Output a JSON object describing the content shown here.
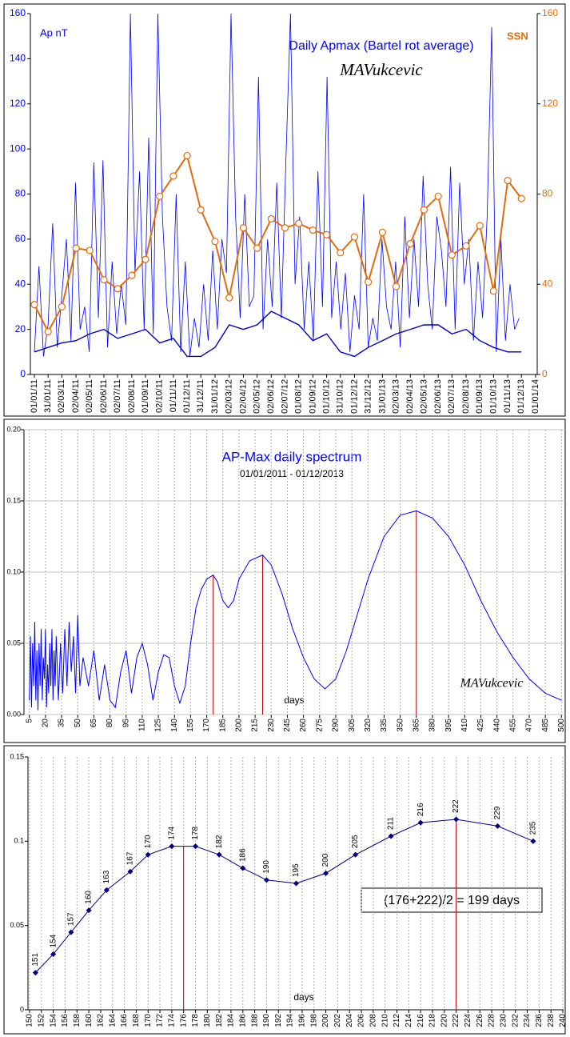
{
  "chart_data": [
    {
      "type": "line",
      "title": "Daily Apmax (Bartel rot average)",
      "annotation": "MAVukcevic",
      "xlim": [
        0,
        1096
      ],
      "xticks": [
        {
          "value": 0,
          "label": "01/01/11"
        },
        {
          "value": 30,
          "label": "31/01/11"
        },
        {
          "value": 60,
          "label": "02/03/11"
        },
        {
          "value": 91,
          "label": "02/04/11"
        },
        {
          "value": 121,
          "label": "02/05/11"
        },
        {
          "value": 152,
          "label": "02/06/11"
        },
        {
          "value": 182,
          "label": "02/07/11"
        },
        {
          "value": 213,
          "label": "02/08/11"
        },
        {
          "value": 243,
          "label": "01/09/11"
        },
        {
          "value": 274,
          "label": "02/10/11"
        },
        {
          "value": 304,
          "label": "01/11/11"
        },
        {
          "value": 334,
          "label": "01/12/11"
        },
        {
          "value": 364,
          "label": "31/12/11"
        },
        {
          "value": 395,
          "label": "31/01/12"
        },
        {
          "value": 426,
          "label": "02/03/12"
        },
        {
          "value": 457,
          "label": "02/04/12"
        },
        {
          "value": 487,
          "label": "02/05/12"
        },
        {
          "value": 518,
          "label": "02/06/12"
        },
        {
          "value": 548,
          "label": "02/07/12"
        },
        {
          "value": 578,
          "label": "01/08/12"
        },
        {
          "value": 609,
          "label": "01/09/12"
        },
        {
          "value": 639,
          "label": "01/10/12"
        },
        {
          "value": 669,
          "label": "31/10/12"
        },
        {
          "value": 700,
          "label": "01/12/12"
        },
        {
          "value": 730,
          "label": "31/12/12"
        },
        {
          "value": 761,
          "label": "31/01/13"
        },
        {
          "value": 791,
          "label": "02/03/13"
        },
        {
          "value": 822,
          "label": "02/04/13"
        },
        {
          "value": 852,
          "label": "02/05/13"
        },
        {
          "value": 883,
          "label": "02/06/13"
        },
        {
          "value": 913,
          "label": "02/07/13"
        },
        {
          "value": 944,
          "label": "02/08/13"
        },
        {
          "value": 974,
          "label": "01/09/13"
        },
        {
          "value": 1004,
          "label": "01/10/13"
        },
        {
          "value": 1035,
          "label": "01/11/13"
        },
        {
          "value": 1065,
          "label": "01/12/13"
        },
        {
          "value": 1096,
          "label": "01/01/14"
        }
      ],
      "ylim": [
        0,
        160
      ],
      "yticks": [
        0,
        20,
        40,
        60,
        80,
        100,
        120,
        140,
        160
      ],
      "y2lim": [
        0,
        160
      ],
      "y2ticks": [
        0,
        40,
        80,
        120,
        160
      ],
      "series": [
        {
          "name": "Ap  nT",
          "color": "#0000ff",
          "x": [
            0,
            10,
            20,
            30,
            40,
            50,
            60,
            70,
            80,
            90,
            100,
            110,
            120,
            130,
            140,
            150,
            160,
            170,
            180,
            190,
            200,
            210,
            220,
            230,
            240,
            250,
            260,
            270,
            280,
            290,
            300,
            310,
            320,
            330,
            340,
            350,
            360,
            370,
            380,
            390,
            400,
            410,
            420,
            430,
            440,
            450,
            460,
            470,
            480,
            490,
            500,
            510,
            520,
            530,
            540,
            550,
            560,
            570,
            580,
            590,
            600,
            610,
            620,
            630,
            640,
            650,
            660,
            670,
            680,
            690,
            700,
            710,
            720,
            730,
            740,
            750,
            760,
            770,
            780,
            790,
            800,
            810,
            820,
            830,
            840,
            850,
            860,
            870,
            880,
            890,
            900,
            910,
            920,
            930,
            940,
            950,
            960,
            970,
            980,
            990,
            1000,
            1010,
            1020,
            1030,
            1040,
            1050,
            1060
          ],
          "values": [
            10,
            48,
            8,
            22,
            67,
            12,
            35,
            60,
            15,
            85,
            20,
            30,
            10,
            94,
            25,
            95,
            12,
            50,
            18,
            40,
            22,
            160,
            45,
            90,
            20,
            105,
            18,
            160,
            70,
            30,
            15,
            80,
            10,
            50,
            8,
            25,
            12,
            40,
            15,
            55,
            20,
            60,
            45,
            160,
            70,
            25,
            80,
            30,
            35,
            132,
            20,
            60,
            30,
            85,
            25,
            95,
            160,
            40,
            70,
            20,
            50,
            15,
            90,
            30,
            132,
            25,
            50,
            20,
            45,
            10,
            35,
            20,
            80,
            12,
            25,
            15,
            60,
            30,
            20,
            50,
            12,
            70,
            25,
            60,
            30,
            88,
            40,
            20,
            70,
            55,
            30,
            92,
            20,
            85,
            40,
            60,
            15,
            50,
            25,
            70,
            154,
            10,
            60,
            15,
            40,
            20,
            25
          ]
        },
        {
          "color": "#0000c0",
          "x": [
            0,
            30,
            60,
            91,
            121,
            152,
            182,
            213,
            243,
            274,
            304,
            334,
            364,
            395,
            426,
            457,
            487,
            518,
            548,
            578,
            609,
            639,
            669,
            700,
            730,
            761,
            791,
            822,
            852,
            883,
            913,
            944,
            974,
            1004,
            1035,
            1065
          ],
          "values": [
            10,
            12,
            14,
            15,
            18,
            20,
            16,
            18,
            20,
            14,
            16,
            8,
            8,
            12,
            22,
            20,
            22,
            28,
            25,
            22,
            15,
            18,
            10,
            8,
            12,
            15,
            18,
            20,
            22,
            22,
            18,
            20,
            15,
            12,
            10,
            10
          ]
        },
        {
          "name": "SSN",
          "color": "#e46c0a",
          "axis": "y2",
          "x": [
            0,
            30,
            60,
            91,
            121,
            152,
            182,
            213,
            243,
            274,
            304,
            334,
            364,
            395,
            426,
            457,
            487,
            518,
            548,
            578,
            609,
            639,
            669,
            700,
            730,
            761,
            791,
            822,
            852,
            883,
            913,
            944,
            974,
            1004,
            1035,
            1065
          ],
          "values": [
            31,
            19,
            30,
            56,
            55,
            42,
            38,
            44,
            51,
            79,
            88,
            97,
            73,
            59,
            34,
            65,
            56,
            69,
            65,
            67,
            64,
            62,
            54,
            61,
            41,
            63,
            39,
            58,
            73,
            79,
            53,
            57,
            66,
            37,
            86,
            78
          ]
        }
      ]
    },
    {
      "type": "line",
      "title": "AP-Max daily spectrum",
      "subtitle": "01/01/2011 - 01/12/2013",
      "xlabel": "days",
      "annotation": "MAVukcevic",
      "xlim": [
        0,
        502
      ],
      "xticks": [
        5,
        20,
        35,
        50,
        65,
        80,
        95,
        110,
        125,
        140,
        155,
        170,
        185,
        200,
        215,
        230,
        245,
        260,
        275,
        290,
        305,
        320,
        335,
        350,
        365,
        380,
        395,
        410,
        425,
        440,
        455,
        470,
        485,
        500
      ],
      "ylim": [
        0,
        0.2
      ],
      "yticks": [
        {
          "value": 0,
          "label": "0.00"
        },
        {
          "value": 0.05,
          "label": "0.05"
        },
        {
          "value": 0.1,
          "label": "0.10"
        },
        {
          "value": 0.15,
          "label": "0.15"
        },
        {
          "value": 0.2,
          "label": "0.20"
        }
      ],
      "grid": true,
      "series": [
        {
          "color": "#0000ff",
          "x": [
            5,
            6,
            7,
            8,
            9,
            10,
            11,
            12,
            13,
            14,
            15,
            16,
            17,
            18,
            19,
            20,
            21,
            22,
            23,
            24,
            25,
            26,
            27,
            28,
            29,
            30,
            32,
            34,
            36,
            38,
            40,
            42,
            44,
            46,
            48,
            50,
            52,
            55,
            60,
            65,
            70,
            75,
            80,
            85,
            90,
            95,
            100,
            105,
            110,
            115,
            120,
            125,
            130,
            135,
            140,
            145,
            150,
            155,
            160,
            165,
            170,
            176,
            180,
            185,
            190,
            195,
            200,
            210,
            222,
            230,
            240,
            250,
            260,
            270,
            280,
            290,
            300,
            310,
            320,
            335,
            350,
            365,
            380,
            395,
            410,
            425,
            440,
            455,
            470,
            485,
            500
          ],
          "values": [
            0.01,
            0.055,
            0.005,
            0.05,
            0.02,
            0.065,
            0.01,
            0.045,
            0.003,
            0.05,
            0.02,
            0.06,
            0.01,
            0.04,
            0.025,
            0.06,
            0.005,
            0.035,
            0.015,
            0.05,
            0.02,
            0.06,
            0.01,
            0.045,
            0.02,
            0.055,
            0.01,
            0.05,
            0.015,
            0.06,
            0.02,
            0.065,
            0.03,
            0.055,
            0.015,
            0.07,
            0.02,
            0.04,
            0.02,
            0.045,
            0.01,
            0.035,
            0.01,
            0.005,
            0.03,
            0.045,
            0.015,
            0.04,
            0.05,
            0.035,
            0.01,
            0.03,
            0.042,
            0.04,
            0.02,
            0.008,
            0.02,
            0.05,
            0.075,
            0.088,
            0.095,
            0.098,
            0.093,
            0.08,
            0.075,
            0.08,
            0.095,
            0.108,
            0.112,
            0.105,
            0.085,
            0.06,
            0.04,
            0.025,
            0.018,
            0.025,
            0.045,
            0.07,
            0.095,
            0.125,
            0.14,
            0.143,
            0.138,
            0.125,
            0.105,
            0.08,
            0.058,
            0.04,
            0.025,
            0.015,
            0.01
          ]
        }
      ],
      "peak_lines": {
        "color": "#c00000",
        "x": [
          176,
          222,
          365
        ],
        "values": [
          0.098,
          0.112,
          0.143
        ]
      }
    },
    {
      "type": "line",
      "xlabel": "days",
      "annotation": "(176+222)/2 = 199 days",
      "xlim": [
        150,
        240
      ],
      "xticks": [
        150,
        152,
        154,
        156,
        158,
        160,
        162,
        164,
        166,
        168,
        170,
        172,
        174,
        176,
        178,
        180,
        182,
        184,
        186,
        188,
        190,
        192,
        194,
        196,
        198,
        200,
        202,
        204,
        206,
        208,
        210,
        212,
        214,
        216,
        218,
        220,
        222,
        224,
        226,
        228,
        230,
        232,
        234,
        236,
        238,
        240
      ],
      "ylim": [
        0,
        0.15
      ],
      "yticks": [
        0,
        0.05,
        0.1,
        0.15
      ],
      "grid": true,
      "series": [
        {
          "color": "#000080",
          "x": [
            151,
            154,
            157,
            160,
            163,
            167,
            170,
            174,
            178,
            182,
            186,
            190,
            195,
            200,
            205,
            211,
            216,
            222,
            229,
            235
          ],
          "values": [
            0.022,
            0.033,
            0.046,
            0.059,
            0.071,
            0.082,
            0.092,
            0.097,
            0.097,
            0.092,
            0.084,
            0.077,
            0.075,
            0.081,
            0.092,
            0.103,
            0.111,
            0.113,
            0.109,
            0.1
          ]
        }
      ],
      "peak_lines": {
        "color": "#c00000",
        "x": [
          176,
          222
        ],
        "values": [
          0.097,
          0.113
        ]
      }
    }
  ]
}
